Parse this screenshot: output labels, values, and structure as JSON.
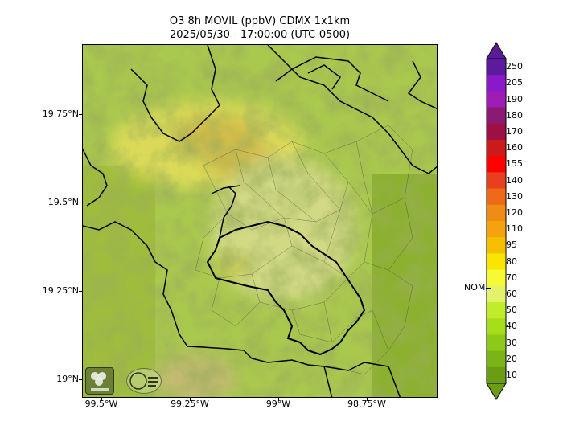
{
  "title": {
    "line1": "O3 8h MOVIL (ppbV) CDMX 1x1km",
    "line2": "2025/05/30 - 17:00:00 (UTC-0500)"
  },
  "map": {
    "lat_labels": [
      "19.75°N",
      "19.5°N",
      "19.25°N",
      "19°N"
    ],
    "lon_labels": [
      "99.5°W",
      "99.25°W",
      "99°W",
      "98.75°W"
    ],
    "logos": [
      "sedema-logo",
      "cdmx-logo"
    ]
  },
  "colorbar": {
    "labels": [
      "250",
      "205",
      "190",
      "180",
      "170",
      "160",
      "155",
      "140",
      "130",
      "120",
      "110",
      "95",
      "80",
      "70",
      "60",
      "50",
      "40",
      "30",
      "20",
      "10"
    ],
    "colors": [
      "#5c1a9e",
      "#8a19c9",
      "#a01cb6",
      "#8a1a72",
      "#9e1044",
      "#cc1a1a",
      "#ff0000",
      "#e8401e",
      "#ee6a18",
      "#f08c14",
      "#f4a20e",
      "#f5c000",
      "#f8e600",
      "#f5fa32",
      "#e2f26a",
      "#c0ec2a",
      "#a6df1a",
      "#8ec918",
      "#7cb418",
      "#6a9c14"
    ],
    "nom_label": "NOM"
  }
}
